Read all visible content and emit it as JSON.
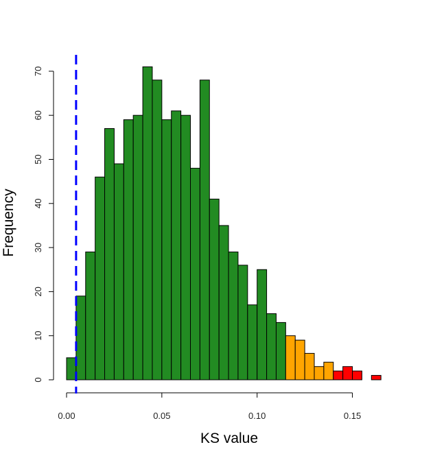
{
  "chart_data": {
    "type": "bar",
    "title": "",
    "xlabel": "KS value",
    "ylabel": "Frequency",
    "xlim": [
      0,
      0.165
    ],
    "ylim": [
      0,
      70
    ],
    "x_ticks": [
      0.0,
      0.05,
      0.1,
      0.15
    ],
    "x_tick_labels": [
      "0.00",
      "0.05",
      "0.10",
      "0.15"
    ],
    "y_ticks": [
      0,
      10,
      20,
      30,
      40,
      50,
      60,
      70
    ],
    "y_tick_labels": [
      "0",
      "10",
      "20",
      "30",
      "40",
      "50",
      "60",
      "70"
    ],
    "bin_width": 0.005,
    "bin_starts": [
      0.0,
      0.005,
      0.01,
      0.015,
      0.02,
      0.025,
      0.03,
      0.035,
      0.04,
      0.045,
      0.05,
      0.055,
      0.06,
      0.065,
      0.07,
      0.075,
      0.08,
      0.085,
      0.09,
      0.095,
      0.1,
      0.105,
      0.11,
      0.115,
      0.12,
      0.125,
      0.13,
      0.135,
      0.14,
      0.145,
      0.15,
      0.155,
      0.16
    ],
    "values": [
      5,
      19,
      29,
      46,
      57,
      49,
      59,
      60,
      71,
      68,
      59,
      61,
      60,
      48,
      68,
      41,
      35,
      29,
      26,
      17,
      25,
      15,
      13,
      10,
      9,
      6,
      3,
      4,
      2,
      3,
      2,
      0,
      1
    ],
    "bar_colors": [
      "#228B22",
      "#228B22",
      "#228B22",
      "#228B22",
      "#228B22",
      "#228B22",
      "#228B22",
      "#228B22",
      "#228B22",
      "#228B22",
      "#228B22",
      "#228B22",
      "#228B22",
      "#228B22",
      "#228B22",
      "#228B22",
      "#228B22",
      "#228B22",
      "#228B22",
      "#228B22",
      "#228B22",
      "#228B22",
      "#228B22",
      "#FFA500",
      "#FFA500",
      "#FFA500",
      "#FFA500",
      "#FFA500",
      "#FF0000",
      "#FF0000",
      "#FF0000",
      "#FF0000",
      "#FF0000"
    ],
    "reference_line": {
      "x": 0.005,
      "style": "dashed",
      "color": "#0000FF"
    },
    "grid": false,
    "legend": "none"
  }
}
